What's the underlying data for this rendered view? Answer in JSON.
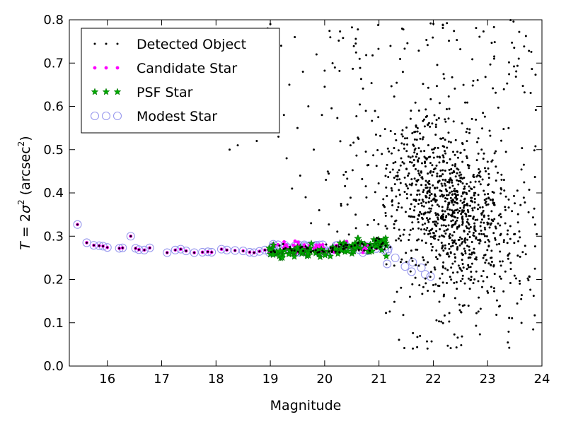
{
  "chart_data": {
    "type": "scatter",
    "xlabel": "Magnitude",
    "ylabel_parts": {
      "var": "T",
      "eq": " = 2",
      "sigma": "σ",
      "sup": "2",
      "unit_open": " (arcsec",
      "unit_sup": "2",
      "unit_close": ")"
    },
    "xlim": [
      15.3,
      24
    ],
    "ylim": [
      0.0,
      0.8
    ],
    "x_ticks": [
      "16",
      "17",
      "18",
      "19",
      "20",
      "21",
      "22",
      "23",
      "24"
    ],
    "y_ticks": [
      "0.0",
      "0.1",
      "0.2",
      "0.3",
      "0.4",
      "0.5",
      "0.6",
      "0.7",
      "0.8"
    ],
    "legend": {
      "placement": "top-left",
      "entries": [
        {
          "label": "Detected Object",
          "marker": "dot",
          "color": "#000000"
        },
        {
          "label": "Candidate Star",
          "marker": "small-circle",
          "color": "#ff00ff"
        },
        {
          "label": "PSF Star",
          "marker": "star",
          "color": "#00aa00"
        },
        {
          "label": "Modest Star",
          "marker": "open-circle",
          "color": "#9999ee"
        }
      ]
    },
    "series": [
      {
        "name": "Detected Object",
        "note_sparse_region": "isolated bright points",
        "points": [
          [
            15.45,
            0.327
          ],
          [
            15.62,
            0.285
          ],
          [
            15.75,
            0.279
          ],
          [
            15.85,
            0.278
          ],
          [
            15.92,
            0.277
          ],
          [
            16.0,
            0.274
          ],
          [
            16.22,
            0.272
          ],
          [
            16.28,
            0.273
          ],
          [
            16.43,
            0.3
          ],
          [
            16.52,
            0.272
          ],
          [
            16.58,
            0.269
          ],
          [
            16.68,
            0.268
          ],
          [
            16.78,
            0.273
          ],
          [
            17.1,
            0.262
          ],
          [
            17.25,
            0.268
          ],
          [
            17.35,
            0.27
          ],
          [
            17.45,
            0.266
          ],
          [
            17.6,
            0.262
          ],
          [
            17.75,
            0.263
          ],
          [
            17.85,
            0.264
          ],
          [
            17.92,
            0.263
          ],
          [
            18.1,
            0.27
          ],
          [
            18.2,
            0.268
          ],
          [
            18.35,
            0.267
          ],
          [
            18.5,
            0.266
          ],
          [
            18.62,
            0.263
          ],
          [
            18.7,
            0.262
          ],
          [
            18.8,
            0.265
          ],
          [
            18.9,
            0.268
          ],
          [
            18.25,
            0.5
          ],
          [
            18.4,
            0.51
          ],
          [
            18.5,
            0.58
          ],
          [
            18.55,
            0.66
          ],
          [
            18.6,
            0.6
          ],
          [
            18.65,
            0.55
          ],
          [
            18.7,
            0.71
          ],
          [
            18.75,
            0.52
          ],
          [
            18.8,
            0.64
          ],
          [
            18.85,
            0.77
          ],
          [
            18.9,
            0.56
          ],
          [
            18.95,
            0.78
          ],
          [
            19.0,
            0.79
          ],
          [
            19.05,
            0.69
          ],
          [
            19.1,
            0.62
          ],
          [
            19.15,
            0.53
          ],
          [
            19.2,
            0.74
          ],
          [
            19.25,
            0.58
          ],
          [
            19.3,
            0.48
          ],
          [
            19.35,
            0.65
          ],
          [
            19.4,
            0.41
          ],
          [
            19.45,
            0.76
          ],
          [
            19.5,
            0.55
          ],
          [
            19.55,
            0.44
          ],
          [
            19.6,
            0.68
          ],
          [
            19.65,
            0.39
          ],
          [
            19.7,
            0.6
          ],
          [
            19.75,
            0.33
          ],
          [
            19.8,
            0.5
          ],
          [
            19.85,
            0.72
          ],
          [
            19.9,
            0.36
          ],
          [
            19.95,
            0.58
          ]
        ]
      },
      {
        "name": "Candidate Star"
      },
      {
        "name": "PSF Star"
      },
      {
        "name": "Modest Star"
      }
    ]
  }
}
